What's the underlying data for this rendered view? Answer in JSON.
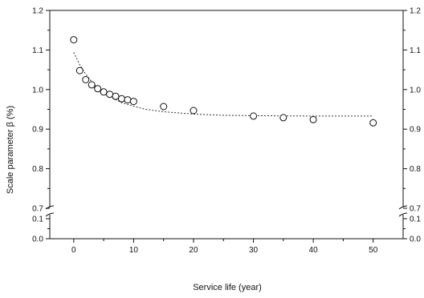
{
  "chart_data": {
    "type": "scatter",
    "xlabel": "Service life (year)",
    "ylabel": "Scale parameter β (%)",
    "xlim": [
      -4,
      55
    ],
    "x_ticks": [
      0,
      10,
      20,
      30,
      40,
      50
    ],
    "ylim_lower": [
      0.0,
      0.12
    ],
    "ylim_upper": [
      0.7,
      1.2
    ],
    "y_ticks_lower": [
      "0.0",
      "0.1"
    ],
    "y_ticks_upper": [
      "0.7",
      "0.8",
      "0.9",
      "1.0",
      "1.1",
      "1.2"
    ],
    "axis_break": true,
    "grid": false,
    "series": [
      {
        "kind": "points",
        "x": [
          0,
          1,
          2,
          3,
          4,
          5,
          6,
          7,
          8,
          9,
          10,
          15,
          20,
          30,
          35,
          40,
          50
        ],
        "y": [
          1.126,
          1.048,
          1.025,
          1.012,
          1.002,
          0.994,
          0.988,
          0.983,
          0.977,
          0.974,
          0.97,
          0.957,
          0.947,
          0.933,
          0.929,
          0.924,
          0.916
        ]
      },
      {
        "kind": "fit",
        "x": [
          0,
          1,
          2,
          3,
          4,
          5,
          6,
          7,
          8,
          10,
          12,
          15,
          20,
          25,
          30,
          40,
          50
        ],
        "y": [
          1.094,
          1.063,
          1.039,
          1.02,
          1.004,
          0.992,
          0.982,
          0.974,
          0.967,
          0.958,
          0.95,
          0.944,
          0.938,
          0.935,
          0.934,
          0.933,
          0.933
        ]
      }
    ]
  }
}
